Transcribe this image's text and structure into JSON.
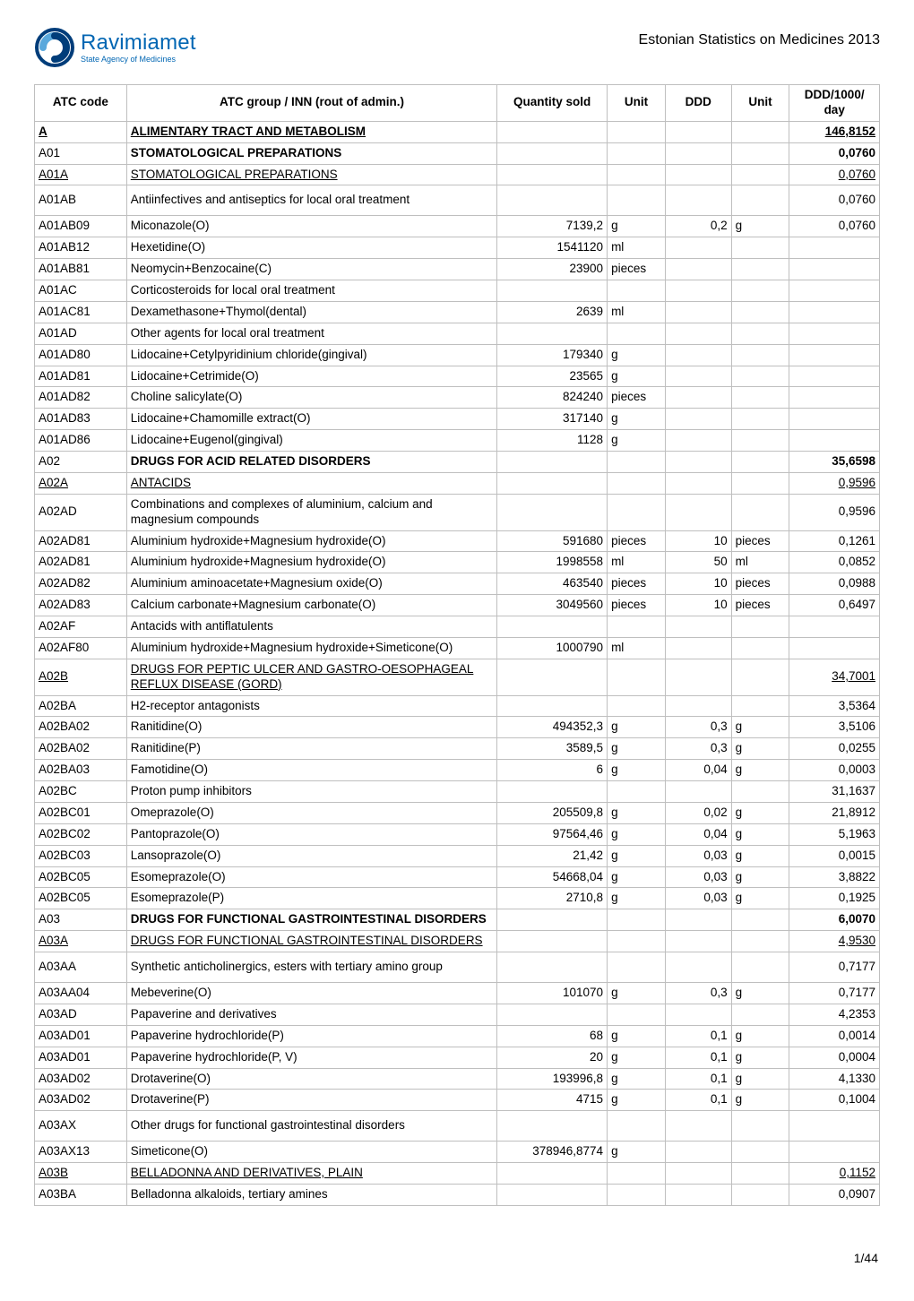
{
  "header": {
    "logo_title": "Ravimiamet",
    "logo_sub": "State Agency of Medicines",
    "doc_title": "Estonian Statistics on Medicines 2013",
    "logo_colors": {
      "deep": "#003d7a",
      "light": "#5aa8dc",
      "text": "#0066b3"
    }
  },
  "table": {
    "columns": {
      "atc": "ATC code",
      "name": "ATC group / INN (rout of admin.)",
      "qty": "Quantity sold",
      "unit1": "Unit",
      "ddd": "DDD",
      "unit2": "Unit",
      "ratio": "DDD/1000/\nday"
    },
    "rows": [
      {
        "atc": "A",
        "name": "ALIMENTARY TRACT AND METABOLISM",
        "ratio": "146,8152",
        "style": "bold underline",
        "ratio_style": "bold underline",
        "atc_style": "bold underline"
      },
      {
        "atc": "A01",
        "name": "STOMATOLOGICAL PREPARATIONS",
        "ratio": "0,0760",
        "style": "bold",
        "ratio_style": "bold"
      },
      {
        "atc": "A01A",
        "name": "STOMATOLOGICAL PREPARATIONS",
        "ratio": "0,0760",
        "atc_style": "underline",
        "style": "underline",
        "ratio_style": "underline"
      },
      {
        "atc": "A01AB",
        "name": "Antiinfectives and antiseptics for local oral treatment",
        "ratio": "0,0760",
        "tall": true
      },
      {
        "atc": "A01AB09",
        "name": "Miconazole(O)",
        "qty": "7139,2",
        "unit1": "g",
        "ddd": "0,2",
        "unit2": "g",
        "ratio": "0,0760"
      },
      {
        "atc": "A01AB12",
        "name": "Hexetidine(O)",
        "qty": "1541120",
        "unit1": "ml"
      },
      {
        "atc": "A01AB81",
        "name": "Neomycin+Benzocaine(C)",
        "qty": "23900",
        "unit1": "pieces"
      },
      {
        "atc": "A01AC",
        "name": "Corticosteroids for local oral treatment"
      },
      {
        "atc": "A01AC81",
        "name": "Dexamethasone+Thymol(dental)",
        "qty": "2639",
        "unit1": "ml"
      },
      {
        "atc": "A01AD",
        "name": "Other agents for local oral treatment"
      },
      {
        "atc": "A01AD80",
        "name": "Lidocaine+Cetylpyridinium chloride(gingival)",
        "qty": "179340",
        "unit1": "g"
      },
      {
        "atc": "A01AD81",
        "name": "Lidocaine+Cetrimide(O)",
        "qty": "23565",
        "unit1": "g"
      },
      {
        "atc": "A01AD82",
        "name": "Choline salicylate(O)",
        "qty": "824240",
        "unit1": "pieces"
      },
      {
        "atc": "A01AD83",
        "name": "Lidocaine+Chamomille extract(O)",
        "qty": "317140",
        "unit1": "g"
      },
      {
        "atc": "A01AD86",
        "name": "Lidocaine+Eugenol(gingival)",
        "qty": "1128",
        "unit1": "g"
      },
      {
        "atc": "A02",
        "name": "DRUGS FOR ACID RELATED DISORDERS",
        "ratio": "35,6598",
        "style": "bold",
        "ratio_style": "bold"
      },
      {
        "atc": "A02A",
        "name": "ANTACIDS",
        "ratio": "0,9596",
        "atc_style": "underline",
        "style": "underline",
        "ratio_style": "underline"
      },
      {
        "atc": "A02AD",
        "name": "Combinations and complexes of aluminium, calcium and magnesium compounds",
        "ratio": "0,9596"
      },
      {
        "atc": "A02AD81",
        "name": "Aluminium hydroxide+Magnesium hydroxide(O)",
        "qty": "591680",
        "unit1": "pieces",
        "ddd": "10",
        "unit2": "pieces",
        "ratio": "0,1261"
      },
      {
        "atc": "A02AD81",
        "name": "Aluminium hydroxide+Magnesium hydroxide(O)",
        "qty": "1998558",
        "unit1": "ml",
        "ddd": "50",
        "unit2": "ml",
        "ratio": "0,0852"
      },
      {
        "atc": "A02AD82",
        "name": "Aluminium aminoacetate+Magnesium oxide(O)",
        "qty": "463540",
        "unit1": "pieces",
        "ddd": "10",
        "unit2": "pieces",
        "ratio": "0,0988"
      },
      {
        "atc": "A02AD83",
        "name": "Calcium carbonate+Magnesium carbonate(O)",
        "qty": "3049560",
        "unit1": "pieces",
        "ddd": "10",
        "unit2": "pieces",
        "ratio": "0,6497"
      },
      {
        "atc": "A02AF",
        "name": "Antacids with antiflatulents"
      },
      {
        "atc": "A02AF80",
        "name": "Aluminium hydroxide+Magnesium hydroxide+Simeticone(O)",
        "qty": "1000790",
        "unit1": "ml"
      },
      {
        "atc": "A02B",
        "name": "DRUGS FOR PEPTIC ULCER AND GASTRO-OESOPHAGEAL REFLUX DISEASE (GORD)",
        "ratio": "34,7001",
        "atc_style": "underline",
        "style": "underline",
        "ratio_style": "underline"
      },
      {
        "atc": "A02BA",
        "name": "H2-receptor antagonists",
        "ratio": "3,5364"
      },
      {
        "atc": "A02BA02",
        "name": "Ranitidine(O)",
        "qty": "494352,3",
        "unit1": "g",
        "ddd": "0,3",
        "unit2": "g",
        "ratio": "3,5106"
      },
      {
        "atc": "A02BA02",
        "name": "Ranitidine(P)",
        "qty": "3589,5",
        "unit1": "g",
        "ddd": "0,3",
        "unit2": "g",
        "ratio": "0,0255"
      },
      {
        "atc": "A02BA03",
        "name": "Famotidine(O)",
        "qty": "6",
        "unit1": "g",
        "ddd": "0,04",
        "unit2": "g",
        "ratio": "0,0003"
      },
      {
        "atc": "A02BC",
        "name": "Proton pump inhibitors",
        "ratio": "31,1637"
      },
      {
        "atc": "A02BC01",
        "name": "Omeprazole(O)",
        "qty": "205509,8",
        "unit1": "g",
        "ddd": "0,02",
        "unit2": "g",
        "ratio": "21,8912"
      },
      {
        "atc": "A02BC02",
        "name": "Pantoprazole(O)",
        "qty": "97564,46",
        "unit1": "g",
        "ddd": "0,04",
        "unit2": "g",
        "ratio": "5,1963"
      },
      {
        "atc": "A02BC03",
        "name": "Lansoprazole(O)",
        "qty": "21,42",
        "unit1": "g",
        "ddd": "0,03",
        "unit2": "g",
        "ratio": "0,0015"
      },
      {
        "atc": "A02BC05",
        "name": "Esomeprazole(O)",
        "qty": "54668,04",
        "unit1": "g",
        "ddd": "0,03",
        "unit2": "g",
        "ratio": "3,8822"
      },
      {
        "atc": "A02BC05",
        "name": "Esomeprazole(P)",
        "qty": "2710,8",
        "unit1": "g",
        "ddd": "0,03",
        "unit2": "g",
        "ratio": "0,1925"
      },
      {
        "atc": "A03",
        "name": "DRUGS FOR FUNCTIONAL GASTROINTESTINAL DISORDERS",
        "ratio": "6,0070",
        "style": "bold",
        "ratio_style": "bold"
      },
      {
        "atc": "A03A",
        "name": "DRUGS FOR FUNCTIONAL GASTROINTESTINAL DISORDERS",
        "ratio": "4,9530",
        "atc_style": "underline",
        "style": "underline",
        "ratio_style": "underline"
      },
      {
        "atc": "A03AA",
        "name": "Synthetic anticholinergics, esters with tertiary amino group",
        "ratio": "0,7177",
        "tall": true
      },
      {
        "atc": "A03AA04",
        "name": "Mebeverine(O)",
        "qty": "101070",
        "unit1": "g",
        "ddd": "0,3",
        "unit2": "g",
        "ratio": "0,7177"
      },
      {
        "atc": "A03AD",
        "name": "Papaverine and derivatives",
        "ratio": "4,2353"
      },
      {
        "atc": "A03AD01",
        "name": "Papaverine hydrochloride(P)",
        "qty": "68",
        "unit1": "g",
        "ddd": "0,1",
        "unit2": "g",
        "ratio": "0,0014"
      },
      {
        "atc": "A03AD01",
        "name": "Papaverine hydrochloride(P, V)",
        "qty": "20",
        "unit1": "g",
        "ddd": "0,1",
        "unit2": "g",
        "ratio": "0,0004"
      },
      {
        "atc": "A03AD02",
        "name": "Drotaverine(O)",
        "qty": "193996,8",
        "unit1": "g",
        "ddd": "0,1",
        "unit2": "g",
        "ratio": "4,1330"
      },
      {
        "atc": "A03AD02",
        "name": "Drotaverine(P)",
        "qty": "4715",
        "unit1": "g",
        "ddd": "0,1",
        "unit2": "g",
        "ratio": "0,1004"
      },
      {
        "atc": "A03AX",
        "name": "Other drugs for functional gastrointestinal disorders",
        "tall": true
      },
      {
        "atc": "A03AX13",
        "name": "Simeticone(O)",
        "qty": "378946,8774",
        "unit1": "g"
      },
      {
        "atc": "A03B",
        "name": "BELLADONNA AND DERIVATIVES, PLAIN",
        "ratio": "0,1152",
        "atc_style": "underline",
        "style": "underline",
        "ratio_style": "underline"
      },
      {
        "atc": "A03BA",
        "name": "Belladonna alkaloids, tertiary amines",
        "ratio": "0,0907"
      }
    ]
  },
  "footer": {
    "page_num": "1/44"
  },
  "style": {
    "border_color": "#bfbfbf",
    "font_family": "Arial, Helvetica, sans-serif",
    "body_font_size": 13.5,
    "header_font_size": 16
  }
}
